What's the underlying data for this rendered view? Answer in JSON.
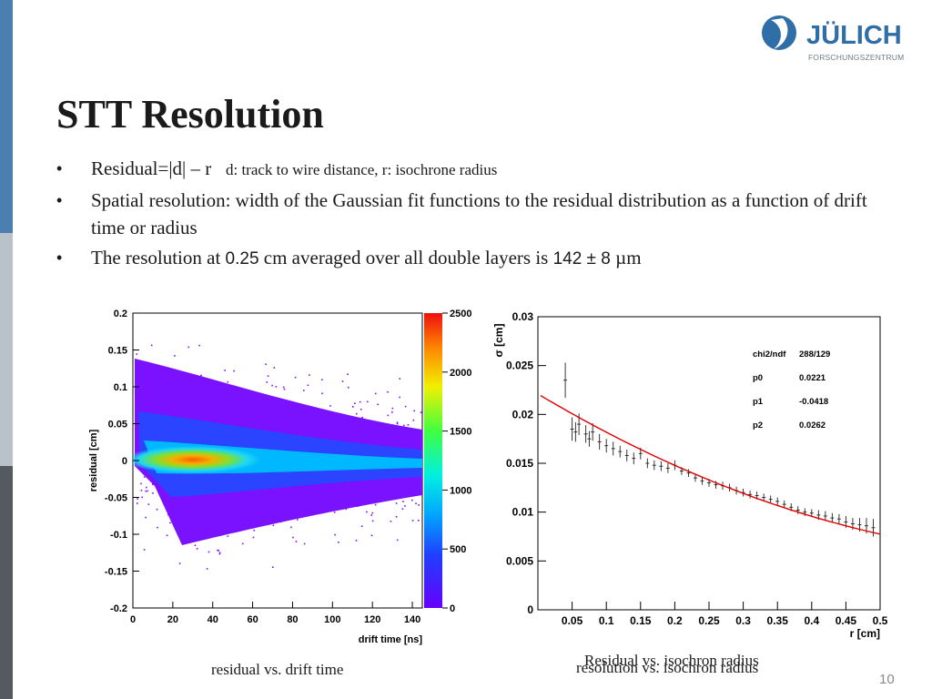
{
  "logo": {
    "name": "JÜLICH",
    "subtitle": "FORSCHUNGSZENTRUM"
  },
  "title": "STT Resolution",
  "bullets": [
    {
      "main": "Residual=|d| – r",
      "note": "d: track to wire distance, r: isochrone radius"
    },
    {
      "main": "Spatial resolution: width of the Gaussian fit functions to the residual distribution as a function of drift time or radius"
    },
    {
      "pre": "The resolution at ",
      "value1": "0.25",
      "mid": " cm averaged over all double layers is ",
      "value2": "142 ± 8",
      "unit": " µm"
    }
  ],
  "chart_data": [
    {
      "type": "heatmap",
      "xlabel": "drift time [ns]",
      "ylabel": "residual [cm]",
      "xlim": [
        0,
        145
      ],
      "ylim": [
        -0.2,
        0.2
      ],
      "xticks": [
        "0",
        "20",
        "40",
        "60",
        "80",
        "100",
        "120",
        "140"
      ],
      "yticks": [
        "0.2",
        "0.15",
        "0.1",
        "0.05",
        "0",
        "-0.05",
        "-0.1",
        "-0.15",
        "-0.2"
      ],
      "zlim": [
        0,
        2500
      ],
      "colorbar_ticks": [
        "2500",
        "2000",
        "1500",
        "1000",
        "500",
        "0"
      ]
    },
    {
      "type": "scatter",
      "xlabel": "r [cm]",
      "ylabel": "σ [cm]",
      "xlim": [
        0,
        0.5
      ],
      "ylim": [
        0,
        0.03
      ],
      "xticks": [
        "0.05",
        "0.1",
        "0.15",
        "0.2",
        "0.25",
        "0.3",
        "0.35",
        "0.4",
        "0.45",
        "0.5"
      ],
      "yticks": [
        "0.03",
        "0.025",
        "0.02",
        "0.015",
        "0.01",
        "0.005",
        "0"
      ],
      "fit": {
        "p0": 0.0221,
        "p1": -0.0418,
        "p2": 0.0262
      },
      "stats": [
        {
          "label": "chi2/ndf",
          "value": "288/129"
        },
        {
          "label": "p0",
          "value": "0.0221"
        },
        {
          "label": "p1",
          "value": "-0.0418"
        },
        {
          "label": "p2",
          "value": "0.0262"
        }
      ],
      "x": [
        0.04,
        0.05,
        0.055,
        0.06,
        0.07,
        0.075,
        0.08,
        0.09,
        0.1,
        0.11,
        0.12,
        0.13,
        0.14,
        0.15,
        0.16,
        0.17,
        0.18,
        0.19,
        0.2,
        0.21,
        0.22,
        0.23,
        0.24,
        0.25,
        0.26,
        0.27,
        0.28,
        0.29,
        0.3,
        0.31,
        0.32,
        0.33,
        0.34,
        0.35,
        0.36,
        0.37,
        0.38,
        0.39,
        0.4,
        0.41,
        0.42,
        0.43,
        0.44,
        0.45,
        0.46,
        0.47,
        0.48,
        0.49
      ],
      "y": [
        0.0235,
        0.0185,
        0.0182,
        0.019,
        0.018,
        0.0175,
        0.0182,
        0.0172,
        0.0168,
        0.0165,
        0.0162,
        0.0158,
        0.0155,
        0.016,
        0.015,
        0.0148,
        0.0147,
        0.0145,
        0.0148,
        0.0142,
        0.014,
        0.0135,
        0.0132,
        0.013,
        0.0128,
        0.0127,
        0.0125,
        0.0122,
        0.012,
        0.0118,
        0.0117,
        0.0115,
        0.0113,
        0.0111,
        0.0108,
        0.0105,
        0.0102,
        0.01,
        0.0099,
        0.0097,
        0.0096,
        0.0094,
        0.0093,
        0.009,
        0.0088,
        0.0087,
        0.0086,
        0.0084
      ],
      "yerr": [
        0.0018,
        0.0012,
        0.001,
        0.0011,
        0.0009,
        0.0008,
        0.0009,
        0.0008,
        0.0007,
        0.0007,
        0.0006,
        0.0006,
        0.0006,
        0.0006,
        0.0005,
        0.0005,
        0.0005,
        0.0005,
        0.0005,
        0.0004,
        0.0004,
        0.0004,
        0.0004,
        0.0004,
        0.0004,
        0.0004,
        0.0004,
        0.0004,
        0.0004,
        0.0004,
        0.0004,
        0.0004,
        0.0004,
        0.0004,
        0.0004,
        0.0004,
        0.0004,
        0.0004,
        0.0004,
        0.0005,
        0.0005,
        0.0005,
        0.0005,
        0.0006,
        0.0006,
        0.0007,
        0.0008,
        0.0009
      ]
    }
  ],
  "captions": {
    "left": "residual vs. drift time",
    "right_over": "Residual vs. isochron radius",
    "right": "resolution vs. isochron radius"
  },
  "page_number": "10",
  "colors": {
    "fit_line": "#e00000",
    "accent": "#4a7fb0"
  }
}
